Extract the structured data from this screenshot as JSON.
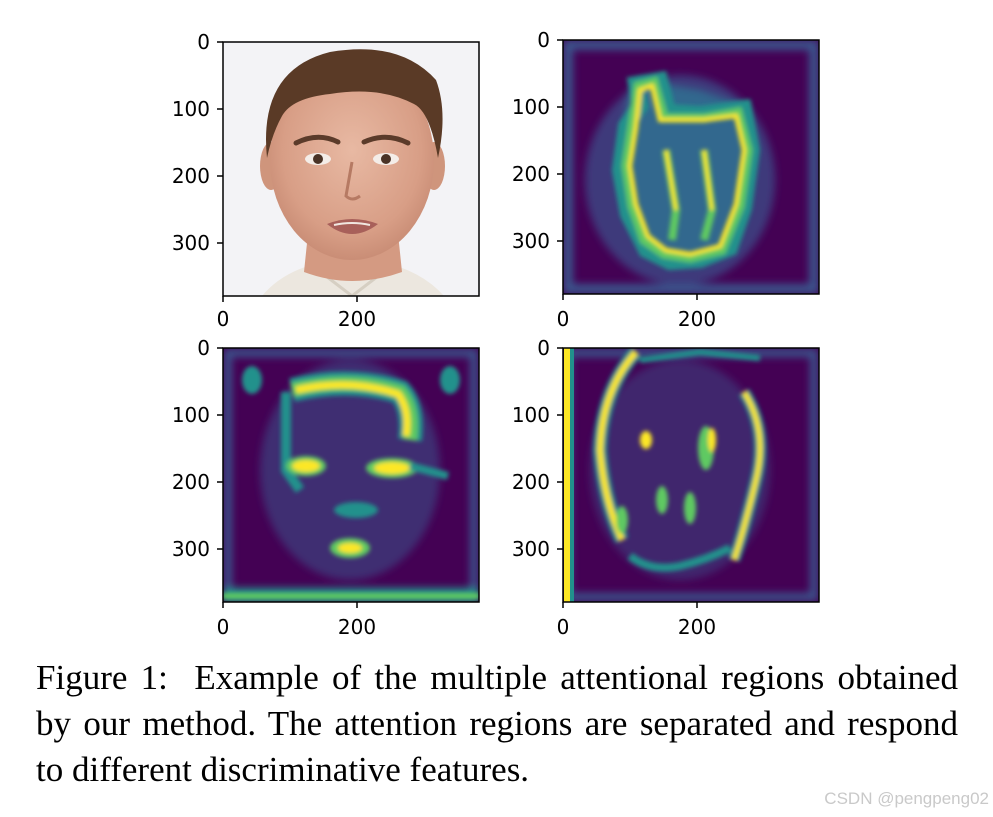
{
  "figure": {
    "panels": [
      {
        "id": "input-face",
        "kind": "photo",
        "yticks": [
          "0",
          "100",
          "200",
          "300"
        ],
        "xticks": [
          "0",
          "200"
        ]
      },
      {
        "id": "attention-map-1",
        "kind": "heatmap",
        "yticks": [
          "0",
          "100",
          "200",
          "300"
        ],
        "xticks": [
          "0",
          "200"
        ]
      },
      {
        "id": "attention-map-2",
        "kind": "heatmap",
        "yticks": [
          "0",
          "100",
          "200",
          "300"
        ],
        "xticks": [
          "0",
          "200"
        ]
      },
      {
        "id": "attention-map-3",
        "kind": "heatmap",
        "yticks": [
          "0",
          "100",
          "200",
          "300"
        ],
        "xticks": [
          "0",
          "200"
        ]
      }
    ],
    "colormap": {
      "low": "#440154",
      "mid": "#21918c",
      "high": "#fde725"
    }
  },
  "caption": {
    "label": "Figure 1:",
    "text": "Example of the multiple attentional regions obtained by our method. The attention regions are separated and respond to different discriminative features."
  },
  "watermark": "CSDN @pengpeng02"
}
